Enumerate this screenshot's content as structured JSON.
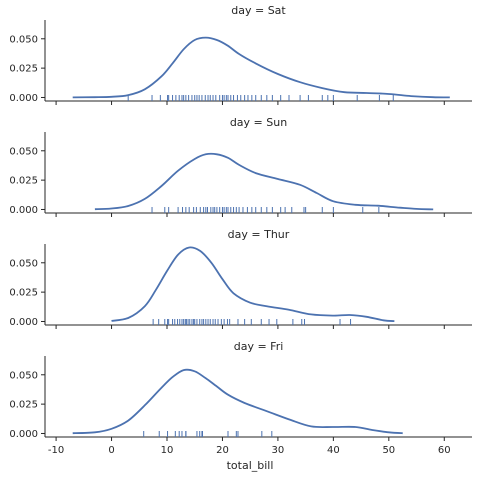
{
  "chart_data": {
    "type": "line",
    "subtype": "kde-facet-grid-with-rug",
    "xlabel": "total_bill",
    "xlim": [
      -12,
      65
    ],
    "ylim": [
      -0.003,
      0.066
    ],
    "x_ticks": [
      -10,
      0,
      10,
      20,
      30,
      40,
      50,
      60
    ],
    "y_ticks": [
      0.0,
      0.025,
      0.05
    ],
    "y_tick_labels": [
      "0.000",
      "0.025",
      "0.050"
    ],
    "line_color": "#4c72b0",
    "rug_color": "#4c72b0",
    "facets": [
      {
        "title": "day = Sat",
        "x": [
          -7,
          -3,
          0,
          3,
          6,
          9,
          11,
          13,
          15,
          17,
          19,
          21,
          23,
          26,
          30,
          34,
          38,
          42,
          46,
          50,
          54,
          58,
          61
        ],
        "y": [
          0.0001,
          0.0002,
          0.0006,
          0.002,
          0.007,
          0.018,
          0.029,
          0.041,
          0.049,
          0.051,
          0.049,
          0.044,
          0.037,
          0.029,
          0.02,
          0.013,
          0.008,
          0.0045,
          0.0038,
          0.003,
          0.0012,
          0.0002,
          0.0001
        ],
        "rug": [
          3,
          7.3,
          8.8,
          10.1,
          10.3,
          11,
          11.6,
          12.2,
          12.7,
          13,
          13.4,
          13.9,
          14.5,
          15,
          15.4,
          15.8,
          16.3,
          16.9,
          17.4,
          17.8,
          18.3,
          18.8,
          19.5,
          20,
          20.3,
          20.7,
          21,
          21.5,
          22,
          22.7,
          23.3,
          24,
          24.6,
          25.3,
          26,
          27,
          28,
          29,
          30.5,
          32,
          34,
          35.5,
          38,
          39,
          40,
          44.3,
          48.3,
          50.8
        ]
      },
      {
        "title": "day = Sun",
        "x": [
          -3,
          0,
          3,
          6,
          9,
          12,
          15,
          17,
          19,
          21,
          23,
          26,
          30,
          34,
          37,
          40,
          44,
          48,
          52,
          55,
          58
        ],
        "y": [
          0.0002,
          0.0008,
          0.003,
          0.009,
          0.02,
          0.033,
          0.043,
          0.047,
          0.047,
          0.044,
          0.038,
          0.031,
          0.026,
          0.021,
          0.014,
          0.007,
          0.004,
          0.0032,
          0.0015,
          0.0005,
          0.0001
        ],
        "rug": [
          7.3,
          9.6,
          10.3,
          12,
          12.8,
          13.4,
          14,
          14.8,
          15.3,
          16,
          16.6,
          17,
          17.3,
          17.9,
          18.3,
          18.6,
          19,
          19.5,
          20,
          20.3,
          20.7,
          21,
          21.5,
          22,
          22.5,
          23,
          23.7,
          24.5,
          25.3,
          26,
          27,
          28,
          29,
          30.5,
          31.3,
          32.5,
          34.7,
          35,
          38,
          40,
          45.3,
          48.2
        ]
      },
      {
        "title": "day = Thur",
        "x": [
          0,
          3,
          6,
          8,
          10,
          12,
          14,
          16,
          18,
          20,
          22,
          25,
          28,
          32,
          36,
          40,
          43,
          46,
          49,
          51
        ],
        "y": [
          0.0005,
          0.003,
          0.013,
          0.027,
          0.043,
          0.057,
          0.063,
          0.06,
          0.05,
          0.036,
          0.024,
          0.016,
          0.013,
          0.01,
          0.006,
          0.005,
          0.0055,
          0.004,
          0.001,
          0.0003
        ],
        "rug": [
          7.5,
          8.5,
          9.6,
          10.1,
          10.3,
          11,
          11.4,
          11.9,
          12.3,
          12.7,
          13,
          13.3,
          13.5,
          13.8,
          14.1,
          14.5,
          14.8,
          15,
          15.4,
          15.9,
          16.3,
          16.6,
          17,
          17.4,
          17.8,
          18.3,
          18.7,
          19.2,
          19.8,
          20.3,
          20.9,
          21.3,
          22.8,
          24,
          25.2,
          27,
          28.4,
          29.8,
          32.7,
          34.3,
          34.8,
          41.2,
          43.1
        ]
      },
      {
        "title": "day = Fri",
        "x": [
          -7,
          -3,
          0,
          3,
          6,
          9,
          11,
          13,
          15,
          17,
          19,
          21,
          24,
          28,
          32,
          36,
          40,
          44,
          47,
          50,
          52.5
        ],
        "y": [
          0.0002,
          0.001,
          0.004,
          0.011,
          0.024,
          0.039,
          0.048,
          0.054,
          0.053,
          0.047,
          0.04,
          0.033,
          0.026,
          0.019,
          0.012,
          0.006,
          0.0055,
          0.0055,
          0.003,
          0.001,
          0.0002
        ],
        "rug": [
          5.8,
          8.6,
          10.1,
          11.5,
          12.2,
          12.7,
          13.4,
          13.4,
          15.4,
          15.9,
          16.3,
          16.4,
          21,
          22.5,
          22.8,
          27.1,
          28.9
        ]
      }
    ]
  }
}
